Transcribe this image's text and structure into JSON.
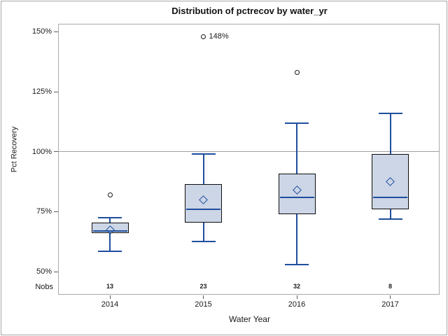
{
  "chart_data": {
    "type": "box",
    "title": "Distribution of pctrecov by water_yr",
    "xlabel": "Water Year",
    "ylabel": "Pct Recovery",
    "nobs_row_label": "Nobs",
    "y_axis": {
      "ticks": [
        {
          "label": "150%",
          "value": 150
        },
        {
          "label": "125%",
          "value": 125
        },
        {
          "label": "100%",
          "value": 100
        },
        {
          "label": "75%",
          "value": 75
        },
        {
          "label": "50%",
          "value": 50
        }
      ],
      "ylim": [
        40,
        153
      ]
    },
    "reference_line_value": 100,
    "grid": "off",
    "legend": "none",
    "categories": [
      "2014",
      "2015",
      "2016",
      "2017"
    ],
    "nobs": [
      "13",
      "23",
      "32",
      "8"
    ],
    "series": [
      {
        "category": "2014",
        "nobs": 13,
        "whisker_low": 58.5,
        "q1": 66,
        "median": 67,
        "mean": 67.5,
        "q3": 70.5,
        "whisker_high": 72.5,
        "outliers": [
          {
            "value": 82,
            "label": ""
          }
        ]
      },
      {
        "category": "2015",
        "nobs": 23,
        "whisker_low": 62.5,
        "q1": 70.5,
        "median": 76,
        "mean": 80,
        "q3": 86.5,
        "whisker_high": 99,
        "outliers": [
          {
            "value": 148,
            "label": "148%"
          }
        ]
      },
      {
        "category": "2016",
        "nobs": 32,
        "whisker_low": 53,
        "q1": 74,
        "median": 81,
        "mean": 84,
        "q3": 91,
        "whisker_high": 112,
        "outliers": [
          {
            "value": 133,
            "label": ""
          }
        ]
      },
      {
        "category": "2017",
        "nobs": 8,
        "whisker_low": 72,
        "q1": 76,
        "median": 81,
        "mean": 87.5,
        "q3": 99,
        "whisker_high": 116,
        "outliers": []
      }
    ]
  },
  "colors": {
    "box_fill": "#ccd6e6",
    "box_border": "#0d0d0d",
    "whisker_line": "#1f4e9e",
    "median_line": "#1f4e9e",
    "mean_marker": "#1f4e9e",
    "outlier_marker": "#1a1a1a",
    "reference_line": "#9f9f9f",
    "frame_border": "#ababab",
    "axis_tick": "#5a5a5a",
    "text": "#1a1a1a"
  }
}
